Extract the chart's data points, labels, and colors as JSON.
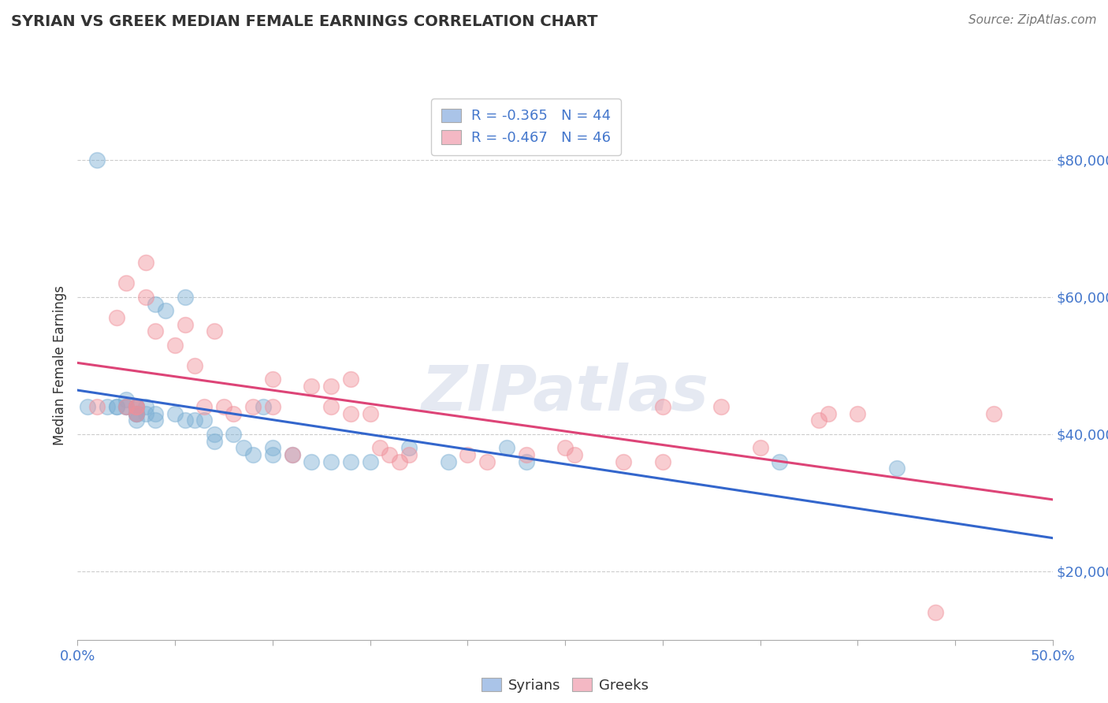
{
  "title": "SYRIAN VS GREEK MEDIAN FEMALE EARNINGS CORRELATION CHART",
  "source": "Source: ZipAtlas.com",
  "ylabel": "Median Female Earnings",
  "ytick_labels": [
    "$20,000",
    "$40,000",
    "$60,000",
    "$80,000"
  ],
  "ytick_values": [
    20000,
    40000,
    60000,
    80000
  ],
  "xlim": [
    0.0,
    0.5
  ],
  "ylim": [
    10000,
    90000
  ],
  "legend_entries": [
    {
      "label": "R = -0.365   N = 44",
      "color": "#aac4e8"
    },
    {
      "label": "R = -0.467   N = 46",
      "color": "#f4b8c4"
    }
  ],
  "legend_bottom": [
    "Syrians",
    "Greeks"
  ],
  "syrians_color": "#7bafd4",
  "greeks_color": "#f0909a",
  "syrians_line_color": "#3366cc",
  "greeks_line_color": "#dd4477",
  "syrians_x": [
    0.005,
    0.01,
    0.015,
    0.02,
    0.02,
    0.025,
    0.025,
    0.025,
    0.03,
    0.03,
    0.03,
    0.03,
    0.03,
    0.03,
    0.035,
    0.035,
    0.04,
    0.04,
    0.04,
    0.045,
    0.05,
    0.055,
    0.055,
    0.06,
    0.065,
    0.07,
    0.07,
    0.08,
    0.085,
    0.09,
    0.095,
    0.1,
    0.1,
    0.11,
    0.12,
    0.13,
    0.14,
    0.15,
    0.17,
    0.19,
    0.22,
    0.23,
    0.36,
    0.42
  ],
  "syrians_y": [
    44000,
    80000,
    44000,
    44000,
    44000,
    45000,
    44000,
    44000,
    44000,
    44000,
    43000,
    43000,
    43000,
    42000,
    44000,
    43000,
    59000,
    43000,
    42000,
    58000,
    43000,
    60000,
    42000,
    42000,
    42000,
    40000,
    39000,
    40000,
    38000,
    37000,
    44000,
    38000,
    37000,
    37000,
    36000,
    36000,
    36000,
    36000,
    38000,
    36000,
    38000,
    36000,
    36000,
    35000
  ],
  "greeks_x": [
    0.01,
    0.02,
    0.025,
    0.025,
    0.03,
    0.03,
    0.03,
    0.035,
    0.035,
    0.04,
    0.05,
    0.055,
    0.06,
    0.065,
    0.07,
    0.075,
    0.08,
    0.09,
    0.1,
    0.1,
    0.11,
    0.12,
    0.13,
    0.13,
    0.14,
    0.14,
    0.15,
    0.155,
    0.16,
    0.165,
    0.17,
    0.2,
    0.21,
    0.23,
    0.25,
    0.255,
    0.28,
    0.3,
    0.3,
    0.33,
    0.35,
    0.38,
    0.385,
    0.4,
    0.44,
    0.47
  ],
  "greeks_y": [
    44000,
    57000,
    44000,
    62000,
    44000,
    44000,
    43000,
    65000,
    60000,
    55000,
    53000,
    56000,
    50000,
    44000,
    55000,
    44000,
    43000,
    44000,
    48000,
    44000,
    37000,
    47000,
    47000,
    44000,
    48000,
    43000,
    43000,
    38000,
    37000,
    36000,
    37000,
    37000,
    36000,
    37000,
    38000,
    37000,
    36000,
    36000,
    44000,
    44000,
    38000,
    42000,
    43000,
    43000,
    14000,
    43000
  ],
  "background_color": "#ffffff",
  "grid_color": "#cccccc",
  "title_color": "#333333",
  "axis_label_color": "#4477cc",
  "watermark_text": "ZIPatlas"
}
